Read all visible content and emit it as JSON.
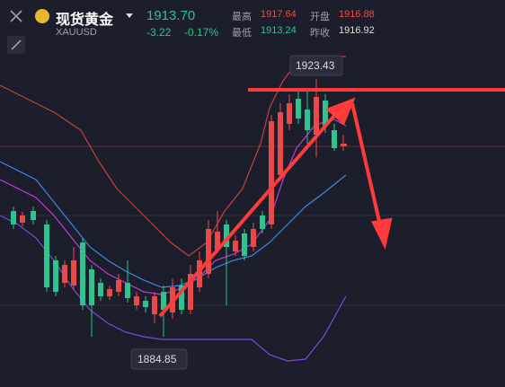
{
  "header": {
    "name": "现货黄金",
    "symbol": "XAUUSD",
    "price": "1913.70",
    "change": "-3.22",
    "change_pct": "-0.17%"
  },
  "stats": [
    {
      "label": "最高",
      "value": "1917.64"
    },
    {
      "label": "开盘",
      "value": "1916.88"
    },
    {
      "label": "最低",
      "value": "1913.24"
    },
    {
      "label": "昨收",
      "value": "1916.92"
    }
  ],
  "chart": {
    "high_label": "1923.43",
    "low_label": "1884.85"
  }
}
